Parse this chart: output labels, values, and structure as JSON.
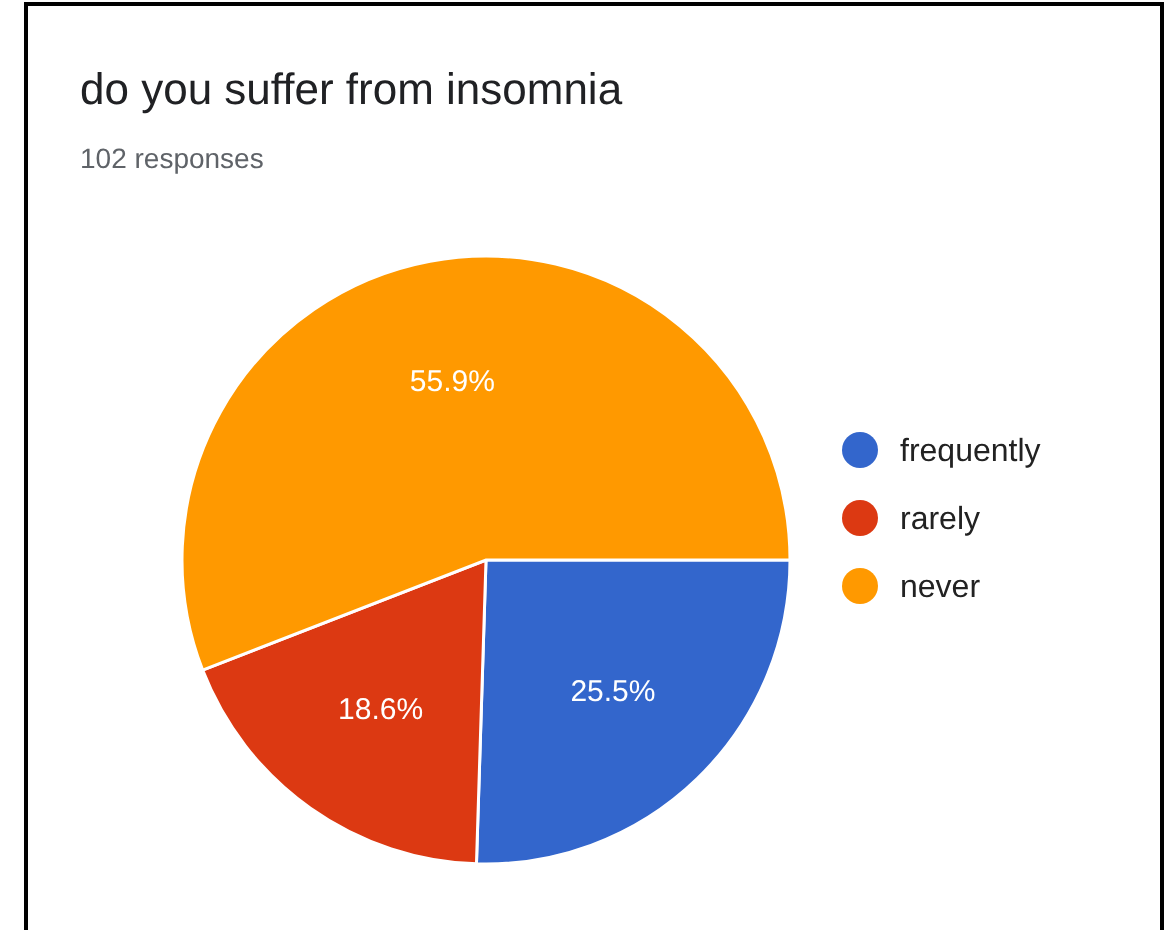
{
  "chart_data": {
    "type": "pie",
    "title": "do you suffer from insomnia",
    "subtitle": "102 responses",
    "categories": [
      "frequently",
      "rarely",
      "never"
    ],
    "values": [
      25.5,
      18.6,
      55.9
    ],
    "colors": [
      "#3366cc",
      "#dc3912",
      "#ff9900"
    ],
    "value_labels": [
      "25.5%",
      "18.6%",
      "55.9%"
    ],
    "legend": "right"
  }
}
